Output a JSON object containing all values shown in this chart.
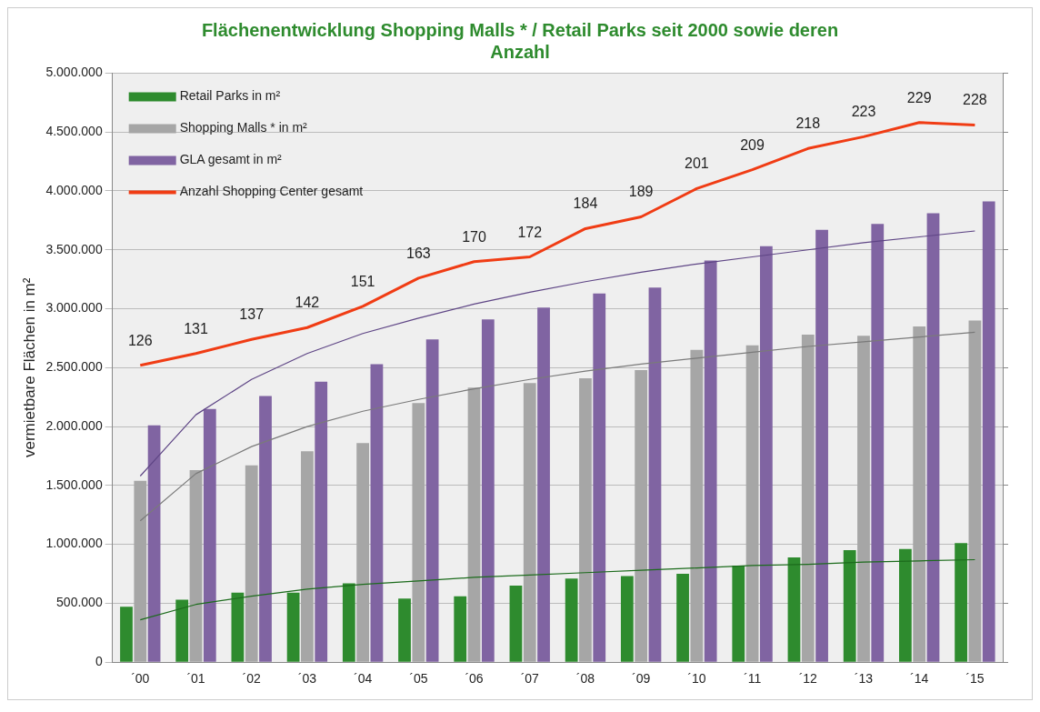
{
  "chart_data": {
    "type": "bar",
    "title": "Flächenentwicklung Shopping Malls * / Retail Parks seit 2000 sowie deren Anzahl",
    "ylabel": "vermietbare Flächen in m²",
    "categories": [
      "´00",
      "´01",
      "´02",
      "´03",
      "´04",
      "´05",
      "´06",
      "´07",
      "´08",
      "´09",
      "´10",
      "´11",
      "´12",
      "´13",
      "´14",
      "´15"
    ],
    "series": [
      {
        "name": "Retail Parks in m²",
        "color": "#2e8b2e",
        "values": [
          470000,
          530000,
          590000,
          590000,
          670000,
          540000,
          560000,
          650000,
          710000,
          730000,
          750000,
          820000,
          890000,
          950000,
          960000,
          1010000
        ]
      },
      {
        "name": "Shopping Malls * in m²",
        "color": "#a6a6a6",
        "values": [
          1540000,
          1630000,
          1670000,
          1790000,
          1860000,
          2200000,
          2330000,
          2370000,
          2410000,
          2480000,
          2650000,
          2690000,
          2780000,
          2770000,
          2850000,
          2900000
        ]
      },
      {
        "name": "GLA gesamt in m²",
        "color": "#8064a2",
        "values": [
          2010000,
          2150000,
          2260000,
          2380000,
          2530000,
          2740000,
          2910000,
          3010000,
          3130000,
          3180000,
          3410000,
          3530000,
          3670000,
          3720000,
          3810000,
          3910000
        ]
      },
      {
        "name": "Anzahl Shopping Center gesamt",
        "type": "line",
        "axis": "y2",
        "color": "#f03c14",
        "data_labels": true,
        "values": [
          126,
          131,
          137,
          142,
          151,
          163,
          170,
          172,
          184,
          189,
          201,
          209,
          218,
          223,
          229,
          228
        ]
      },
      {
        "type": "line",
        "color": "#1c6b1c",
        "values": [
          360000,
          490000,
          560000,
          620000,
          660000,
          690000,
          720000,
          740000,
          760000,
          780000,
          800000,
          820000,
          830000,
          850000,
          860000,
          870000
        ]
      },
      {
        "type": "line",
        "color": "#7a7a7a",
        "values": [
          1200000,
          1600000,
          1830000,
          2000000,
          2130000,
          2230000,
          2320000,
          2400000,
          2470000,
          2530000,
          2580000,
          2630000,
          2680000,
          2720000,
          2760000,
          2800000
        ]
      },
      {
        "type": "line",
        "color": "#5e4585",
        "values": [
          1580000,
          2100000,
          2400000,
          2620000,
          2790000,
          2920000,
          3040000,
          3140000,
          3230000,
          3310000,
          3380000,
          3440000,
          3500000,
          3560000,
          3610000,
          3660000
        ]
      }
    ],
    "ylim": [
      0,
      5000000
    ],
    "yticks": [
      {
        "value": 0,
        "label": "0"
      },
      {
        "value": 500000,
        "label": "500.000"
      },
      {
        "value": 1000000,
        "label": "1.000.000"
      },
      {
        "value": 1500000,
        "label": "1.500.000"
      },
      {
        "value": 2000000,
        "label": "2.000.000"
      },
      {
        "value": 2500000,
        "label": "2.500.000"
      },
      {
        "value": 3000000,
        "label": "3.000.000"
      },
      {
        "value": 3500000,
        "label": "3.500.000"
      },
      {
        "value": 4000000,
        "label": "4.000.000"
      },
      {
        "value": 4500000,
        "label": "4.500.000"
      },
      {
        "value": 5000000,
        "label": "5.000.000"
      }
    ],
    "y2lim": [
      0,
      250
    ],
    "y2ticks": [
      {
        "value": 0,
        "label": null
      },
      {
        "value": 25,
        "label": null
      },
      {
        "value": 50,
        "label": null
      },
      {
        "value": 75,
        "label": null
      },
      {
        "value": 100,
        "label": null
      },
      {
        "value": 125,
        "label": null
      },
      {
        "value": 150,
        "label": null
      },
      {
        "value": 175,
        "label": null
      },
      {
        "value": 200,
        "label": null
      },
      {
        "value": 225,
        "label": null
      },
      {
        "value": 250,
        "label": null
      }
    ],
    "grid": "y",
    "legend": "top left",
    "marker": "none"
  }
}
